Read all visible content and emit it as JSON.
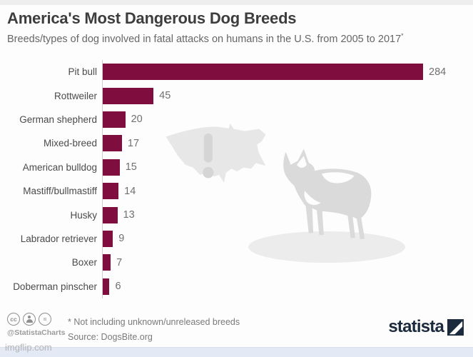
{
  "header": {
    "title": "America's Most Dangerous Dog Breeds",
    "subtitle": "Breeds/types of dog involved in fatal attacks on humans in the U.S. from 2005 to 2017",
    "subtitle_footnote_marker": "*"
  },
  "chart_data": {
    "type": "bar",
    "orientation": "horizontal",
    "title": "America's Most Dangerous Dog Breeds",
    "subtitle": "Breeds/types of dog involved in fatal attacks on humans in the U.S. from 2005 to 2017*",
    "categories": [
      "Pit bull",
      "Rottweiler",
      "German shepherd",
      "Mixed-breed",
      "American bulldog",
      "Mastiff/bullmastiff",
      "Husky",
      "Labrador retriever",
      "Boxer",
      "Doberman pinscher"
    ],
    "values": [
      284,
      45,
      20,
      17,
      15,
      14,
      13,
      9,
      7,
      6
    ],
    "xlabel": "",
    "ylabel": "",
    "xlim": [
      0,
      284
    ],
    "value_labels_shown": true,
    "grid": false,
    "legend": false,
    "bar_color": "#7f0e3e"
  },
  "footer": {
    "cc_glyph": "cc",
    "nd_glyph": "=",
    "handle": "@StatistaCharts",
    "note": "* Not including unknown/unreleased breeds",
    "source": "Source: DogsBite.org",
    "brand": "statista"
  },
  "watermark": {
    "text": "imgflip.com"
  },
  "colors": {
    "bar": "#7f0e3e",
    "title_text": "#3d3d3d",
    "subtitle_text": "#666666",
    "value_text": "#707070",
    "brand_navy": "#1b2a3c",
    "artwork_gray": "#e7e7e7",
    "bottom_strip": "#e4e9f6"
  }
}
